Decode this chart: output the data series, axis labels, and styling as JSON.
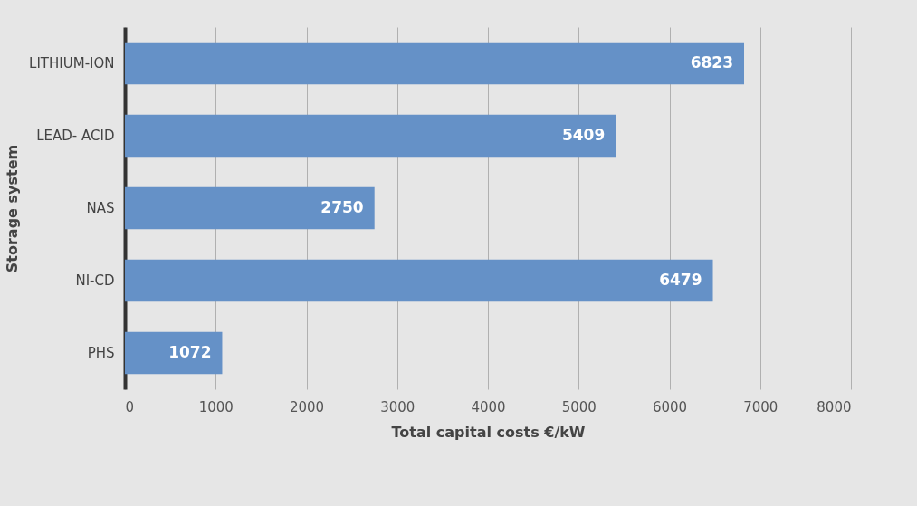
{
  "chart_data": {
    "type": "bar",
    "orientation": "horizontal",
    "xlabel": "Total capital costs €/kW",
    "ylabel": "Storage system",
    "categories": [
      "LITHIUM-ION",
      "LEAD- ACID",
      "NAS",
      "NI-CD",
      "PHS"
    ],
    "values": [
      6823,
      5409,
      2750,
      6479,
      1072
    ],
    "color": "#6591c7",
    "xlim": [
      0,
      8000
    ],
    "xticks": [
      0,
      1000,
      2000,
      3000,
      4000,
      5000,
      6000,
      7000,
      8000
    ],
    "grid": "x",
    "data_labels": true
  }
}
